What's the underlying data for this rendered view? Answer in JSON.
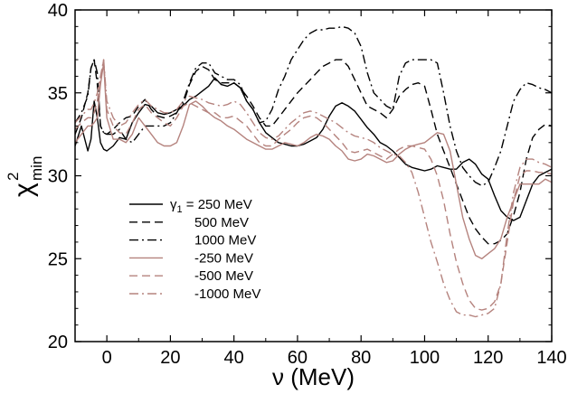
{
  "chart_data": {
    "type": "line",
    "xlabel": "ν (MeV)",
    "ylabel": "χ",
    "ylabel_sup": "2",
    "ylabel_sub": "min",
    "xlim": [
      -10,
      140
    ],
    "ylim": [
      20,
      40
    ],
    "xticks": [
      0,
      20,
      40,
      60,
      80,
      100,
      120,
      140
    ],
    "yticks": [
      20,
      25,
      30,
      35,
      40
    ],
    "legend_position": "lower-left",
    "legend_symbol": "γ",
    "legend_symbol_sub": "1",
    "colors": {
      "positive": "#000000",
      "negative": "#b5837e"
    },
    "series": [
      {
        "name": "γ₁ = 250 MeV",
        "label_main": " = 250 MeV",
        "has_symbol": true,
        "color": "#000000",
        "dash": "solid",
        "x": [
          -10,
          -8,
          -6,
          -5,
          -4,
          -3,
          -2,
          -1,
          0,
          2,
          4,
          6,
          8,
          10,
          12,
          14,
          16,
          18,
          20,
          22,
          24,
          26,
          28,
          30,
          32,
          34,
          36,
          38,
          40,
          42,
          44,
          46,
          48,
          50,
          52,
          54,
          56,
          58,
          60,
          62,
          64,
          66,
          68,
          70,
          72,
          74,
          76,
          78,
          80,
          82,
          84,
          86,
          88,
          90,
          92,
          94,
          96,
          98,
          100,
          102,
          104,
          106,
          108,
          110,
          112,
          114,
          116,
          118,
          120,
          122,
          124,
          126,
          128,
          130,
          132,
          134,
          136,
          138,
          140
        ],
        "y": [
          31.8,
          33.0,
          31.5,
          32.2,
          34.5,
          33.5,
          32.0,
          31.6,
          31.5,
          31.8,
          32.3,
          32.2,
          33.2,
          33.8,
          34.3,
          34.2,
          33.8,
          33.7,
          33.8,
          34.0,
          34.2,
          34.6,
          34.8,
          35.1,
          35.4,
          35.9,
          35.5,
          35.4,
          35.6,
          35.3,
          34.5,
          34.0,
          33.2,
          32.6,
          32.3,
          32.0,
          31.9,
          31.8,
          31.8,
          31.9,
          32.1,
          32.3,
          32.8,
          33.6,
          34.2,
          34.4,
          34.2,
          33.9,
          33.4,
          32.9,
          32.5,
          32.0,
          31.8,
          31.5,
          31.1,
          30.7,
          30.5,
          30.4,
          30.3,
          30.4,
          30.6,
          30.5,
          30.4,
          30.4,
          30.8,
          31.0,
          30.7,
          30.1,
          29.8,
          28.8,
          27.9,
          27.5,
          27.3,
          27.5,
          28.5,
          29.5,
          30.0,
          30.2,
          30.4
        ]
      },
      {
        "name": "500 MeV",
        "label_main": "500 MeV",
        "has_symbol": false,
        "color": "#000000",
        "dash": "dashed",
        "x": [
          -10,
          -8,
          -6,
          -5,
          -4,
          -3,
          -2,
          -1,
          0,
          2,
          4,
          6,
          8,
          10,
          12,
          14,
          16,
          18,
          20,
          22,
          24,
          26,
          28,
          30,
          32,
          34,
          36,
          38,
          40,
          42,
          44,
          46,
          48,
          50,
          52,
          54,
          56,
          58,
          60,
          62,
          64,
          66,
          68,
          70,
          72,
          74,
          76,
          78,
          80,
          82,
          84,
          86,
          88,
          90,
          92,
          94,
          96,
          98,
          100,
          102,
          104,
          106,
          108,
          110,
          112,
          114,
          116,
          118,
          120,
          122,
          124,
          126,
          128,
          130,
          132,
          134,
          136,
          138,
          140
        ],
        "y": [
          32.5,
          33.5,
          35.0,
          36.5,
          37.0,
          35.5,
          33.0,
          32.6,
          32.5,
          32.8,
          33.2,
          33.5,
          33.6,
          34.2,
          34.6,
          34.0,
          33.6,
          33.5,
          33.6,
          33.8,
          34.3,
          35.5,
          36.3,
          36.6,
          36.4,
          35.8,
          35.6,
          35.6,
          35.6,
          35.3,
          34.8,
          34.2,
          33.5,
          33.0,
          33.0,
          33.5,
          34.0,
          34.5,
          35.0,
          35.4,
          35.8,
          36.2,
          36.6,
          36.8,
          37.0,
          37.0,
          36.6,
          35.8,
          35.0,
          34.2,
          34.0,
          33.8,
          33.5,
          34.0,
          34.8,
          35.2,
          35.5,
          35.6,
          35.4,
          34.0,
          32.5,
          31.5,
          30.5,
          29.5,
          28.5,
          27.5,
          26.8,
          26.3,
          25.9,
          25.9,
          26.1,
          26.5,
          27.6,
          29.0,
          31.0,
          32.3,
          32.8,
          33.1,
          33.0
        ]
      },
      {
        "name": "1000 MeV",
        "label_main": "1000 MeV",
        "has_symbol": false,
        "color": "#000000",
        "dash": "dashdot",
        "x": [
          -10,
          -8,
          -6,
          -5,
          -4,
          -3,
          -2,
          -1,
          0,
          2,
          4,
          6,
          8,
          10,
          12,
          14,
          16,
          18,
          20,
          22,
          24,
          26,
          28,
          30,
          32,
          34,
          36,
          38,
          40,
          42,
          44,
          46,
          48,
          50,
          52,
          54,
          56,
          58,
          60,
          62,
          64,
          66,
          68,
          70,
          72,
          74,
          76,
          78,
          80,
          82,
          84,
          86,
          88,
          90,
          92,
          94,
          96,
          98,
          100,
          102,
          104,
          106,
          108,
          110,
          112,
          114,
          116,
          118,
          120,
          122,
          124,
          126,
          128,
          130,
          132,
          134,
          136,
          138,
          140
        ],
        "y": [
          33.2,
          33.8,
          34.8,
          36.5,
          37.0,
          36.2,
          33.0,
          32.6,
          32.5,
          32.5,
          32.8,
          32.2,
          32.0,
          32.5,
          33.0,
          33.0,
          33.0,
          33.0,
          33.2,
          33.8,
          34.5,
          35.6,
          36.5,
          36.8,
          36.8,
          36.2,
          36.0,
          35.8,
          35.8,
          35.5,
          34.5,
          34.0,
          33.2,
          33.3,
          34.0,
          35.2,
          36.0,
          37.0,
          37.6,
          38.2,
          38.6,
          38.8,
          38.8,
          38.9,
          38.9,
          39.0,
          38.9,
          38.6,
          37.8,
          36.2,
          35.0,
          34.6,
          34.2,
          34.0,
          36.0,
          36.8,
          37.0,
          37.0,
          37.0,
          37.0,
          36.8,
          35.0,
          33.0,
          31.5,
          30.5,
          30.0,
          29.6,
          29.4,
          29.6,
          30.5,
          31.5,
          33.0,
          34.5,
          35.2,
          35.6,
          35.5,
          35.3,
          35.2,
          35.0
        ]
      },
      {
        "name": "-250 MeV",
        "label_main": "-250 MeV",
        "has_symbol": false,
        "color": "#b5837e",
        "dash": "solid",
        "x": [
          -10,
          -8,
          -6,
          -5,
          -4,
          -3,
          -2,
          -1,
          0,
          2,
          4,
          6,
          8,
          10,
          12,
          14,
          16,
          18,
          20,
          22,
          24,
          26,
          28,
          30,
          32,
          34,
          36,
          38,
          40,
          42,
          44,
          46,
          48,
          50,
          52,
          54,
          56,
          58,
          60,
          62,
          64,
          66,
          68,
          70,
          72,
          74,
          76,
          78,
          80,
          82,
          84,
          86,
          88,
          90,
          92,
          94,
          96,
          98,
          100,
          102,
          104,
          106,
          108,
          110,
          112,
          114,
          116,
          118,
          120,
          122,
          124,
          126,
          128,
          130,
          132,
          134,
          136,
          138,
          140
        ],
        "y": [
          32.0,
          32.5,
          33.0,
          33.0,
          33.2,
          33.5,
          35.5,
          36.8,
          33.5,
          32.2,
          32.2,
          32.0,
          32.5,
          33.5,
          33.0,
          32.5,
          32.0,
          31.8,
          31.8,
          32.0,
          33.0,
          34.3,
          34.5,
          34.2,
          33.8,
          33.5,
          33.3,
          33.0,
          32.8,
          32.5,
          32.2,
          32.0,
          31.8,
          31.6,
          31.6,
          31.8,
          32.0,
          31.9,
          31.8,
          32.0,
          32.3,
          32.5,
          32.4,
          32.2,
          31.8,
          31.5,
          31.0,
          30.9,
          31.0,
          31.3,
          31.2,
          31.0,
          30.8,
          30.9,
          31.3,
          31.6,
          31.8,
          31.9,
          32.0,
          32.3,
          32.6,
          32.5,
          31.5,
          29.5,
          27.5,
          26.2,
          25.2,
          25.0,
          25.3,
          25.6,
          26.2,
          27.5,
          28.5,
          29.5,
          29.5,
          29.5,
          29.5,
          29.8,
          29.6
        ]
      },
      {
        "name": "-500 MeV",
        "label_main": "-500 MeV",
        "has_symbol": false,
        "color": "#b5837e",
        "dash": "dashed",
        "x": [
          -10,
          -8,
          -6,
          -5,
          -4,
          -3,
          -2,
          -1,
          0,
          2,
          4,
          6,
          8,
          10,
          12,
          14,
          16,
          18,
          20,
          22,
          24,
          26,
          28,
          30,
          32,
          34,
          36,
          38,
          40,
          42,
          44,
          46,
          48,
          50,
          52,
          54,
          56,
          58,
          60,
          62,
          64,
          66,
          68,
          70,
          72,
          74,
          76,
          78,
          80,
          82,
          84,
          86,
          88,
          90,
          92,
          94,
          96,
          98,
          100,
          102,
          104,
          106,
          108,
          110,
          112,
          114,
          116,
          118,
          120,
          122,
          124,
          126,
          128,
          130,
          132,
          134,
          136,
          138,
          140
        ],
        "y": [
          32.8,
          33.2,
          33.5,
          33.5,
          33.8,
          34.5,
          35.8,
          37.0,
          34.0,
          33.0,
          32.6,
          32.5,
          33.2,
          34.0,
          34.3,
          33.8,
          33.5,
          33.2,
          33.0,
          33.5,
          34.2,
          34.4,
          34.2,
          34.0,
          33.8,
          33.8,
          33.5,
          33.5,
          33.6,
          33.3,
          33.0,
          32.5,
          32.0,
          31.8,
          31.8,
          32.2,
          32.5,
          32.8,
          33.2,
          33.5,
          33.6,
          33.5,
          33.2,
          32.8,
          32.4,
          32.0,
          31.5,
          31.4,
          31.5,
          31.6,
          31.4,
          31.2,
          31.0,
          31.3,
          31.6,
          31.8,
          31.8,
          31.7,
          31.6,
          31.0,
          30.0,
          28.5,
          26.5,
          24.8,
          23.5,
          22.5,
          22.0,
          21.9,
          22.0,
          22.4,
          23.5,
          26.0,
          28.5,
          30.0,
          30.3,
          30.3,
          30.2,
          30.2,
          30.1
        ]
      },
      {
        "name": "-1000 MeV",
        "label_main": "-1000 MeV",
        "has_symbol": false,
        "color": "#b5837e",
        "dash": "dashdot",
        "x": [
          -10,
          -8,
          -6,
          -5,
          -4,
          -3,
          -2,
          -1,
          0,
          2,
          4,
          6,
          8,
          10,
          12,
          14,
          16,
          18,
          20,
          22,
          24,
          26,
          28,
          30,
          32,
          34,
          36,
          38,
          40,
          42,
          44,
          46,
          48,
          50,
          52,
          54,
          56,
          58,
          60,
          62,
          64,
          66,
          68,
          70,
          72,
          74,
          76,
          78,
          80,
          82,
          84,
          86,
          88,
          90,
          92,
          94,
          96,
          98,
          100,
          102,
          104,
          106,
          108,
          110,
          112,
          114,
          116,
          118,
          120,
          122,
          124,
          126,
          128,
          130,
          132,
          134,
          136,
          138,
          140
        ],
        "y": [
          33.2,
          33.6,
          34.0,
          34.0,
          34.4,
          35.0,
          36.0,
          37.0,
          34.5,
          33.5,
          33.0,
          33.2,
          33.8,
          34.3,
          34.6,
          34.2,
          34.0,
          33.8,
          33.8,
          34.0,
          34.5,
          34.8,
          34.7,
          34.6,
          34.4,
          34.3,
          34.2,
          34.3,
          34.5,
          34.3,
          33.8,
          33.2,
          32.6,
          32.3,
          32.2,
          32.4,
          32.8,
          33.2,
          33.5,
          33.8,
          33.9,
          33.8,
          33.6,
          33.4,
          33.2,
          32.9,
          32.6,
          32.4,
          32.3,
          32.2,
          32.0,
          31.7,
          31.5,
          31.3,
          31.2,
          30.8,
          30.2,
          29.0,
          27.5,
          26.0,
          24.8,
          23.5,
          22.5,
          21.8,
          21.6,
          21.6,
          21.5,
          21.6,
          21.7,
          22.0,
          23.5,
          26.5,
          29.0,
          30.5,
          31.0,
          31.0,
          30.8,
          30.7,
          30.5
        ]
      }
    ]
  }
}
